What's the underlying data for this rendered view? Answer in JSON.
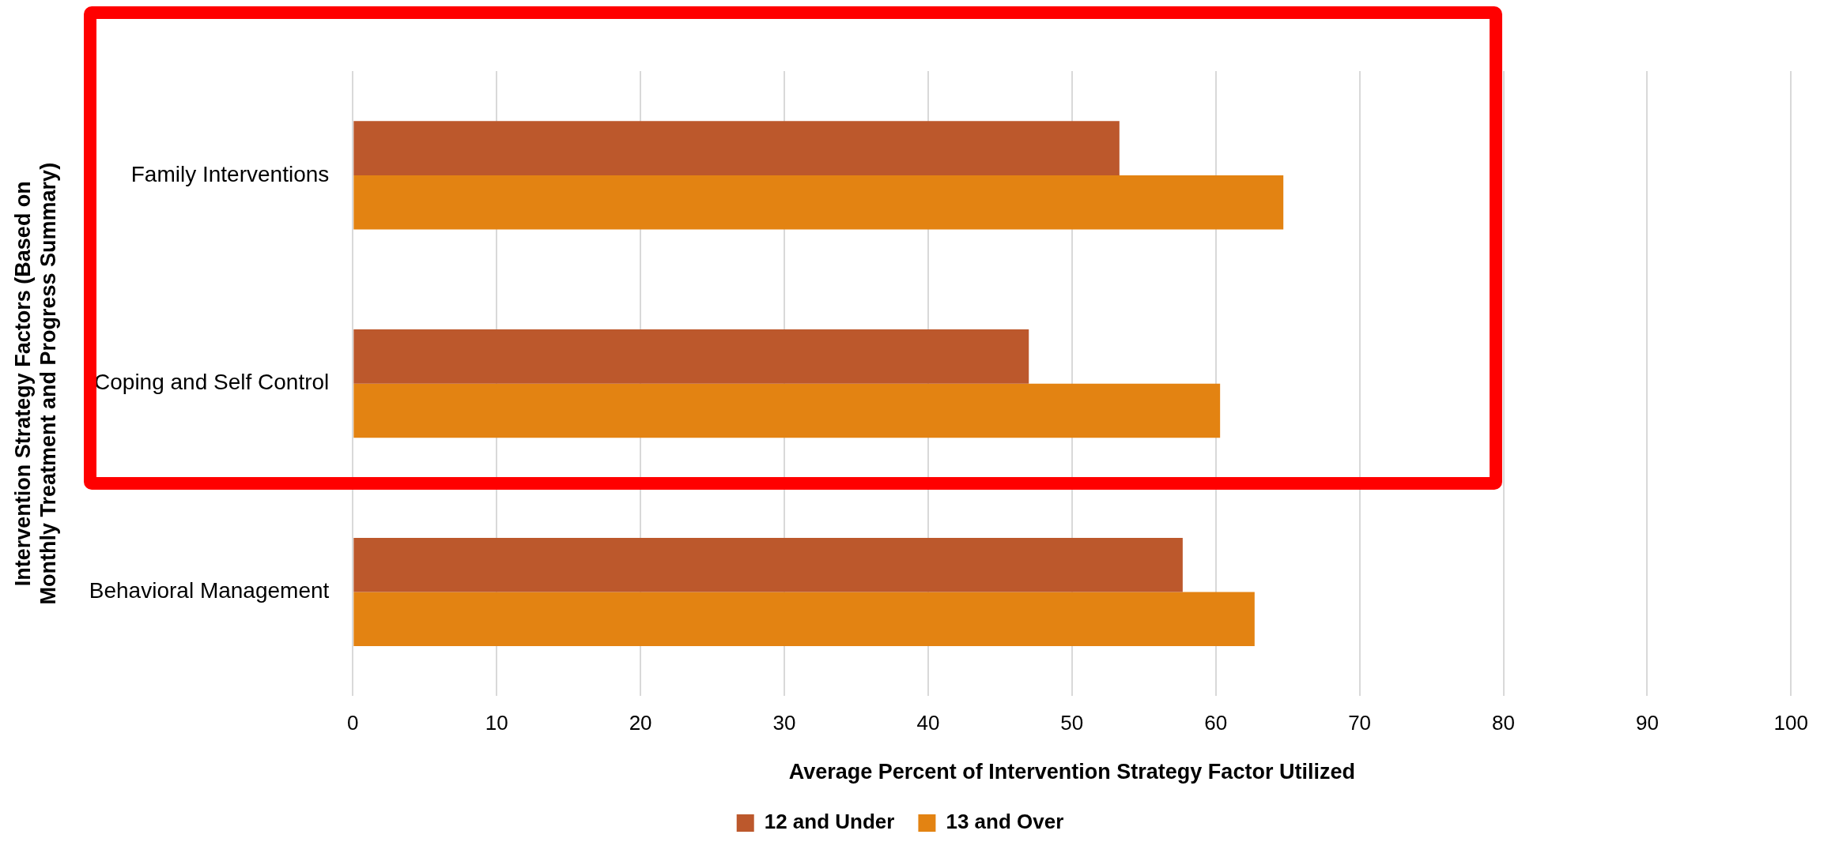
{
  "chart_data": {
    "type": "bar",
    "orientation": "horizontal",
    "xlabel": "Average Percent of Intervention Strategy Factor Utilized",
    "ylabel": "Intervention Strategy Factors (Based on Monthly Treatment and Progress Summary)",
    "categories": [
      "Family Interventions",
      "Coping and Self Control",
      "Behavioral Management"
    ],
    "series": [
      {
        "name": "12 and Under",
        "color": "#bc582c",
        "values": [
          53.3,
          47.0,
          57.7
        ]
      },
      {
        "name": "13 and Over",
        "color": "#e38312",
        "values": [
          64.7,
          60.3,
          62.7
        ]
      }
    ],
    "xlim": [
      0,
      100
    ],
    "xticks": [
      0,
      10,
      20,
      30,
      40,
      50,
      60,
      70,
      80,
      90,
      100
    ],
    "grid": "x",
    "legend": "bottom"
  }
}
